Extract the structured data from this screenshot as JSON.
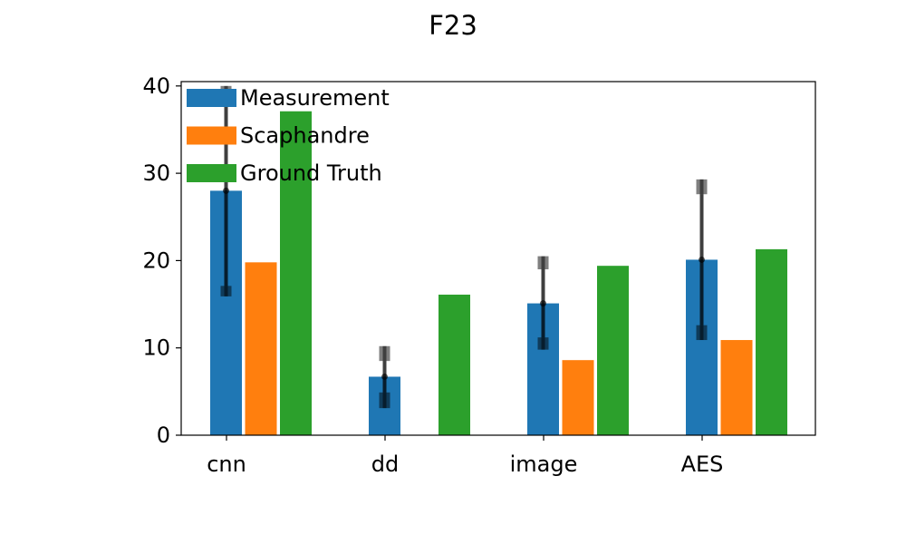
{
  "chart_data": {
    "type": "bar",
    "title": "F23",
    "xlabel": "",
    "ylabel": "",
    "categories": [
      "cnn",
      "dd",
      "image",
      "AES"
    ],
    "ylim": [
      0,
      40.5
    ],
    "yticks": [
      0,
      10,
      20,
      30,
      40
    ],
    "grid": false,
    "legend_position": "top-left",
    "series": [
      {
        "name": "Measurement",
        "color": "#1f77b4",
        "values": [
          28.0,
          6.7,
          15.1,
          20.1
        ]
      },
      {
        "name": "Scaphandre",
        "color": "#ff7f0e",
        "values": [
          19.8,
          0.0,
          8.6,
          10.9
        ]
      },
      {
        "name": "Ground Truth",
        "color": "#2ca02c",
        "values": [
          37.1,
          16.1,
          19.4,
          21.3
        ]
      }
    ],
    "error_bars": [
      {
        "category": "cnn",
        "center": 28.0,
        "inner": [
          17.1,
          38.9
        ],
        "outer": [
          15.9,
          40.0
        ],
        "color": "#000000"
      },
      {
        "category": "dd",
        "center": 6.7,
        "inner": [
          4.9,
          8.5
        ],
        "outer": [
          3.1,
          10.2
        ],
        "color": "#000000"
      },
      {
        "category": "image",
        "center": 15.1,
        "inner": [
          11.2,
          19.0
        ],
        "outer": [
          9.8,
          20.5
        ],
        "color": "#000000"
      },
      {
        "category": "AES",
        "center": 20.1,
        "inner": [
          12.6,
          27.6
        ],
        "outer": [
          10.9,
          29.3
        ],
        "color": "#000000"
      }
    ]
  }
}
